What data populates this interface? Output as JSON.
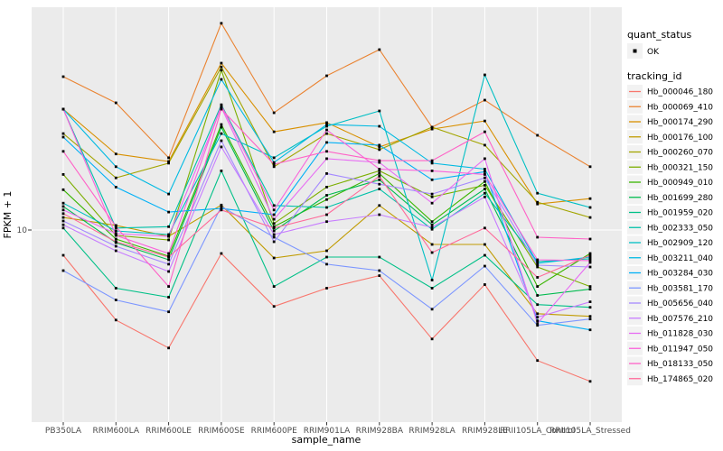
{
  "chart": {
    "y_tick_label": "10",
    "x_axis_title": "sample_name",
    "y_axis_title": "FPKM + 1"
  },
  "legend": {
    "quant_status_title": "quant_status",
    "quant_items": [
      {
        "label": "OK",
        "glyph": "black-point"
      }
    ],
    "tracking_title": "tracking_id"
  },
  "chart_data": {
    "type": "line",
    "title": "",
    "xlabel": "sample_name",
    "ylabel": "FPKM + 1",
    "y_scale": "log10",
    "y_ticks": [
      10
    ],
    "ylim": [
      0.6,
      258
    ],
    "grid": true,
    "legend_position": "right",
    "panel_background": "#EBEBEB",
    "grid_color": "#FFFFFF",
    "point_color": "#000000",
    "quant_status": "OK",
    "categories": [
      "PB350LA",
      "RRIM600LA",
      "RRIM600LE",
      "RRIM600SE",
      "RRIM600PE",
      "RRIM901LA",
      "RRIM928BA",
      "RRIM928LA",
      "RRIM928LE",
      "RRII105LA_Control",
      "RRII105LA_Stressed"
    ],
    "series": [
      {
        "name": "Hb_000046_180",
        "color": "#F8766D",
        "values": [
          6.92,
          2.69,
          1.79,
          7.1,
          3.28,
          4.28,
          5.14,
          2.04,
          4.51,
          1.49,
          1.1
        ]
      },
      {
        "name": "Hb_000069_410",
        "color": "#EA8331",
        "values": [
          93.6,
          63.9,
          28.7,
          204,
          55.3,
          94.9,
          139,
          44.8,
          66.5,
          39.8,
          25.2
        ]
      },
      {
        "name": "Hb_000174_290",
        "color": "#D89000",
        "values": [
          58.3,
          30.3,
          27.2,
          114,
          41.9,
          47.9,
          33.6,
          43.6,
          49.1,
          14.6,
          15.8
        ]
      },
      {
        "name": "Hb_000176_100",
        "color": "#C09B00",
        "values": [
          12.0,
          10.7,
          9.12,
          14.4,
          6.65,
          7.39,
          14.3,
          8.1,
          8.1,
          2.95,
          2.84
        ]
      },
      {
        "name": "Hb_000260_070",
        "color": "#A3A500",
        "values": [
          40.8,
          21.4,
          26.5,
          108,
          25.2,
          40.8,
          32.3,
          44.8,
          34.5,
          15.0,
          12.0
        ]
      },
      {
        "name": "Hb_000321_150",
        "color": "#7CAE00",
        "values": [
          22.5,
          9.24,
          8.65,
          103,
          11.0,
          18.7,
          23.7,
          16.2,
          19.2,
          5.83,
          4.39
        ]
      },
      {
        "name": "Hb_000949_010",
        "color": "#39B600",
        "values": [
          18.0,
          8.77,
          6.83,
          46.6,
          10.5,
          15.6,
          22.8,
          11.3,
          20.3,
          4.39,
          7.1
        ]
      },
      {
        "name": "Hb_001699_280",
        "color": "#00BB4E",
        "values": [
          14.1,
          8.32,
          6.48,
          44.8,
          9.87,
          16.6,
          20.8,
          10.8,
          18.2,
          3.85,
          4.22
        ]
      },
      {
        "name": "Hb_001959_020",
        "color": "#00C087",
        "values": [
          10.3,
          4.28,
          3.75,
          23.7,
          4.39,
          6.74,
          6.74,
          4.28,
          6.92,
          3.37,
          3.24
        ]
      },
      {
        "name": "Hb_002333_050",
        "color": "#00C1A9",
        "values": [
          58.3,
          10.3,
          10.5,
          62.2,
          14.3,
          13.9,
          18.2,
          10.1,
          17.1,
          6.31,
          6.57
        ]
      },
      {
        "name": "Hb_002909_120",
        "color": "#00BFC4",
        "values": [
          14.8,
          9.87,
          9.36,
          40.8,
          28.7,
          45.4,
          56.8,
          4.82,
          96.1,
          17.1,
          13.9
        ]
      },
      {
        "name": "Hb_003211_040",
        "color": "#00BAE2",
        "values": [
          58.3,
          25.2,
          16.9,
          90.0,
          26.8,
          46.6,
          45.4,
          26.5,
          24.3,
          6.15,
          6.74
        ]
      },
      {
        "name": "Hb_003284_030",
        "color": "#00B0F6",
        "values": [
          38.8,
          18.7,
          13.0,
          13.7,
          12.5,
          35.9,
          34.5,
          20.8,
          23.4,
          2.66,
          2.33
        ]
      },
      {
        "name": "Hb_003581_170",
        "color": "#7C96FF",
        "values": [
          5.53,
          3.6,
          3.03,
          14.1,
          9.0,
          6.07,
          5.53,
          3.15,
          5.91,
          2.49,
          2.73
        ]
      },
      {
        "name": "Hb_005656_040",
        "color": "#A58AFF",
        "values": [
          11.4,
          7.89,
          6.07,
          36.8,
          8.43,
          22.8,
          19.5,
          16.9,
          21.4,
          5.99,
          5.83
        ]
      },
      {
        "name": "Hb_007576_210",
        "color": "#C77CFF",
        "values": [
          10.8,
          7.39,
          5.46,
          33.6,
          9.36,
          11.3,
          12.5,
          10.4,
          16.2,
          2.8,
          3.51
        ]
      },
      {
        "name": "Hb_011828_030",
        "color": "#E76BF3",
        "values": [
          13.4,
          9.49,
          9.12,
          59.8,
          11.7,
          28.3,
          26.8,
          14.8,
          28.3,
          2.56,
          6.23
        ]
      },
      {
        "name": "Hb_011947_050",
        "color": "#FA62DB",
        "values": [
          58.3,
          9.24,
          7.1,
          61.4,
          13.4,
          43.1,
          24.3,
          23.7,
          22.5,
          6.48,
          6.4
        ]
      },
      {
        "name": "Hb_018133_050",
        "color": "#FF61C7",
        "values": [
          31.5,
          10.5,
          4.39,
          58.3,
          26.1,
          31.5,
          27.5,
          27.5,
          41.9,
          9.0,
          8.77
        ]
      },
      {
        "name": "Hb_174865_020",
        "color": "#FF6A9A",
        "values": [
          12.7,
          8.43,
          6.74,
          13.4,
          10.3,
          12.5,
          21.9,
          7.2,
          10.3,
          5.01,
          6.92
        ]
      }
    ]
  }
}
